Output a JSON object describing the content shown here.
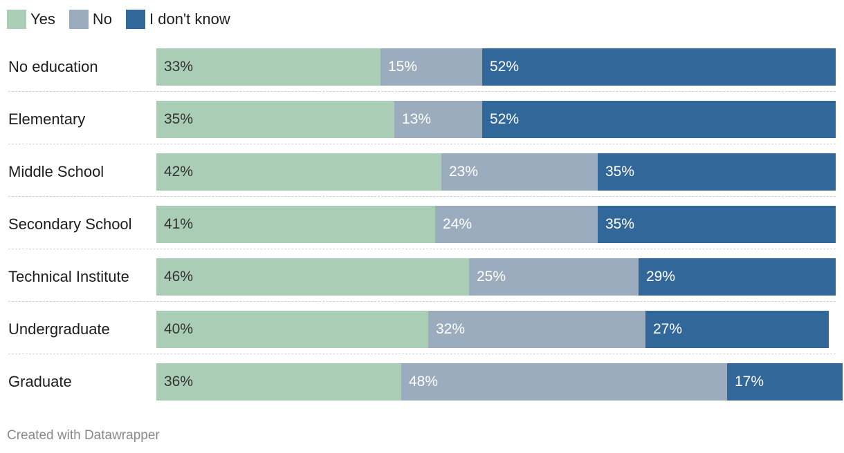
{
  "legend": [
    {
      "label": "Yes",
      "color": "#aacdb5"
    },
    {
      "label": "No",
      "color": "#9aacbd"
    },
    {
      "label": "I don't know",
      "color": "#32679a"
    }
  ],
  "footer": {
    "text": "Created with Datawrapper"
  },
  "chart_data": {
    "type": "bar",
    "orientation": "horizontal",
    "stacked": true,
    "xlim": [
      0,
      100
    ],
    "grid": false,
    "legend_position": "top-left",
    "categories": [
      "No education",
      "Elementary",
      "Middle School",
      "Secondary School",
      "Technical Institute",
      "Undergraduate",
      "Graduate"
    ],
    "series": [
      {
        "name": "Yes",
        "color": "#aacdb5",
        "label_color": "#333333",
        "values": [
          33,
          35,
          42,
          41,
          46,
          40,
          36
        ]
      },
      {
        "name": "No",
        "color": "#9aacbd",
        "label_color": "#ffffff",
        "values": [
          15,
          13,
          23,
          24,
          25,
          32,
          48
        ]
      },
      {
        "name": "I don't know",
        "color": "#32679a",
        "label_color": "#ffffff",
        "values": [
          52,
          52,
          35,
          35,
          29,
          27,
          17
        ]
      }
    ],
    "value_suffix": "%"
  }
}
